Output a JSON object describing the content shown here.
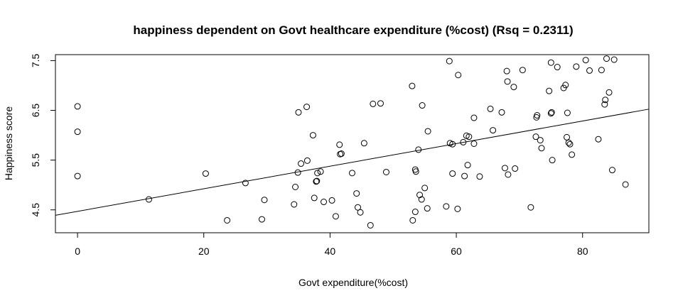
{
  "chart_data": {
    "type": "scatter",
    "title": "happiness dependent on Govt healthcare expenditure (%cost) (Rsq = 0.2311)",
    "xlabel": "Govt expenditure(%cost)",
    "ylabel": "Happiness score",
    "xlim": [
      -3.5,
      90.5
    ],
    "ylim": [
      4.04,
      7.62
    ],
    "xticks": [
      0,
      20,
      40,
      60,
      80
    ],
    "yticks": [
      4.5,
      5.5,
      6.5,
      7.5
    ],
    "regression_line": {
      "intercept": 4.47,
      "slope": 0.0227
    },
    "points": [
      [
        0,
        6.58
      ],
      [
        0,
        6.07
      ],
      [
        0,
        5.18
      ],
      [
        11.3,
        4.71
      ],
      [
        20.3,
        5.23
      ],
      [
        23.7,
        4.29
      ],
      [
        26.6,
        5.04
      ],
      [
        29.2,
        4.31
      ],
      [
        29.6,
        4.7
      ],
      [
        34.3,
        4.61
      ],
      [
        34.5,
        4.96
      ],
      [
        34.9,
        5.25
      ],
      [
        35.0,
        6.46
      ],
      [
        35.4,
        5.43
      ],
      [
        36.3,
        6.57
      ],
      [
        36.4,
        5.49
      ],
      [
        37.3,
        6.0
      ],
      [
        37.5,
        4.74
      ],
      [
        37.8,
        5.07
      ],
      [
        37.9,
        5.08
      ],
      [
        38.0,
        5.24
      ],
      [
        38.5,
        5.27
      ],
      [
        39.0,
        4.66
      ],
      [
        40.3,
        4.69
      ],
      [
        40.9,
        4.37
      ],
      [
        41.5,
        5.81
      ],
      [
        41.6,
        5.62
      ],
      [
        41.8,
        5.63
      ],
      [
        43.5,
        5.24
      ],
      [
        44.2,
        4.83
      ],
      [
        44.4,
        4.55
      ],
      [
        44.8,
        4.45
      ],
      [
        45.4,
        5.84
      ],
      [
        46.4,
        4.19
      ],
      [
        46.8,
        6.63
      ],
      [
        48.0,
        6.64
      ],
      [
        48.9,
        5.26
      ],
      [
        53.0,
        6.99
      ],
      [
        53.1,
        4.29
      ],
      [
        53.5,
        4.46
      ],
      [
        53.5,
        5.31
      ],
      [
        53.6,
        5.27
      ],
      [
        54.0,
        5.71
      ],
      [
        54.2,
        4.8
      ],
      [
        54.5,
        4.71
      ],
      [
        54.6,
        6.6
      ],
      [
        55.0,
        4.94
      ],
      [
        55.4,
        4.53
      ],
      [
        55.5,
        6.08
      ],
      [
        58.4,
        4.57
      ],
      [
        58.9,
        7.49
      ],
      [
        59.0,
        5.84
      ],
      [
        59.4,
        5.23
      ],
      [
        59.4,
        5.82
      ],
      [
        60.2,
        4.52
      ],
      [
        60.3,
        7.21
      ],
      [
        61.1,
        5.86
      ],
      [
        61.3,
        5.18
      ],
      [
        61.6,
        5.99
      ],
      [
        61.8,
        5.4
      ],
      [
        62.0,
        5.97
      ],
      [
        62.8,
        6.35
      ],
      [
        62.8,
        5.83
      ],
      [
        63.7,
        5.17
      ],
      [
        65.4,
        6.53
      ],
      [
        65.8,
        6.1
      ],
      [
        67.2,
        6.46
      ],
      [
        67.7,
        5.34
      ],
      [
        68.0,
        7.29
      ],
      [
        68.1,
        7.08
      ],
      [
        68.2,
        5.21
      ],
      [
        69.1,
        6.97
      ],
      [
        69.3,
        5.33
      ],
      [
        70.5,
        7.31
      ],
      [
        71.8,
        4.55
      ],
      [
        72.6,
        5.97
      ],
      [
        72.7,
        6.36
      ],
      [
        72.8,
        6.4
      ],
      [
        73.3,
        5.9
      ],
      [
        73.5,
        5.74
      ],
      [
        74.7,
        6.89
      ],
      [
        75.0,
        7.46
      ],
      [
        75.0,
        6.44
      ],
      [
        75.1,
        6.46
      ],
      [
        75.2,
        5.5
      ],
      [
        76.0,
        7.37
      ],
      [
        77.0,
        6.95
      ],
      [
        77.3,
        7.01
      ],
      [
        77.5,
        5.96
      ],
      [
        77.6,
        6.45
      ],
      [
        77.8,
        5.85
      ],
      [
        78.0,
        5.82
      ],
      [
        78.3,
        5.61
      ],
      [
        79.0,
        7.38
      ],
      [
        80.5,
        7.51
      ],
      [
        81.1,
        7.3
      ],
      [
        82.5,
        5.92
      ],
      [
        83.0,
        7.31
      ],
      [
        83.5,
        6.62
      ],
      [
        83.6,
        6.71
      ],
      [
        83.8,
        7.54
      ],
      [
        84.2,
        6.86
      ],
      [
        84.7,
        5.3
      ],
      [
        85.0,
        7.52
      ],
      [
        86.8,
        5.01
      ]
    ]
  }
}
